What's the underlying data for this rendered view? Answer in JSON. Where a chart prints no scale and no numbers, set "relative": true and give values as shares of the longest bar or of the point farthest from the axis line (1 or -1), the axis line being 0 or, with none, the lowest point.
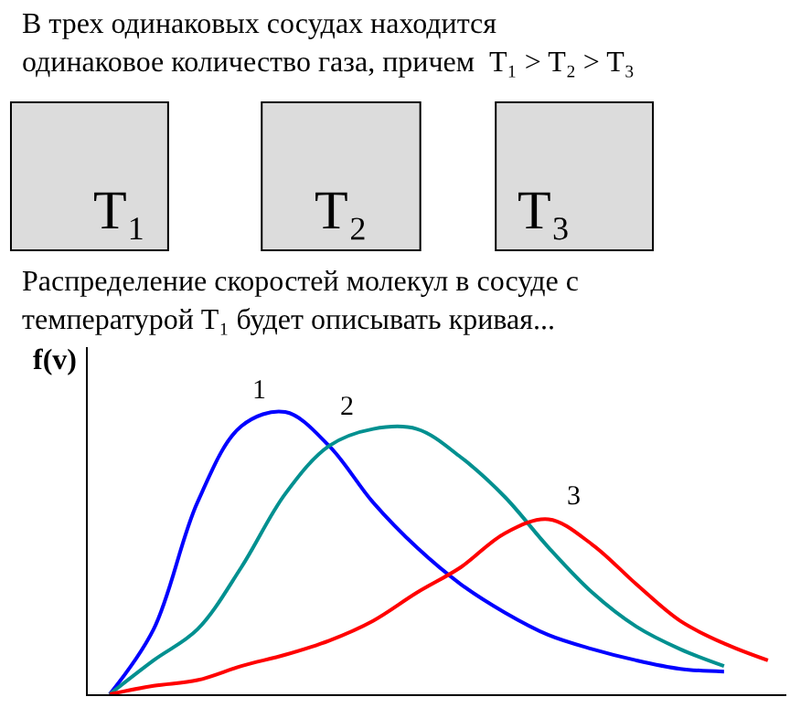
{
  "chart_data": {
    "type": "line",
    "relative": true,
    "title": "В трех одинаковых сосудах находится\nодинаковое количество газа, причем  T₁ > T₂ > T₃",
    "subtitle": "Распределение скоростей молекул в сосуде с\nтемпературой T₁ будет описывать кривая...",
    "annotations": [
      "T₁",
      "T₂",
      "T₃"
    ],
    "ylabel": "f(v)",
    "categories": [
      null,
      null,
      null,
      null,
      null,
      null,
      null,
      null,
      null,
      null,
      null,
      null,
      null,
      null,
      null,
      null
    ],
    "series": [
      {
        "name": "1",
        "color": "#0000ff",
        "values": [
          0,
          0.23,
          0.68,
          0.95,
          1.0,
          0.88,
          0.68,
          0.52,
          0.39,
          0.29,
          0.21,
          0.16,
          0.12,
          0.09,
          0.08,
          null
        ]
      },
      {
        "name": "2",
        "color": "#009090",
        "values": [
          0,
          0.12,
          0.23,
          0.45,
          0.71,
          0.88,
          0.94,
          0.94,
          0.84,
          0.7,
          0.52,
          0.36,
          0.24,
          0.16,
          0.1,
          null
        ]
      },
      {
        "name": "3",
        "color": "#ff0000",
        "values": [
          0,
          0.03,
          0.05,
          0.1,
          0.14,
          0.19,
          0.26,
          0.36,
          0.45,
          0.57,
          0.62,
          0.53,
          0.39,
          0.26,
          0.18,
          0.12
        ]
      }
    ],
    "legend": false,
    "marker": "none",
    "line_style": "solid"
  }
}
